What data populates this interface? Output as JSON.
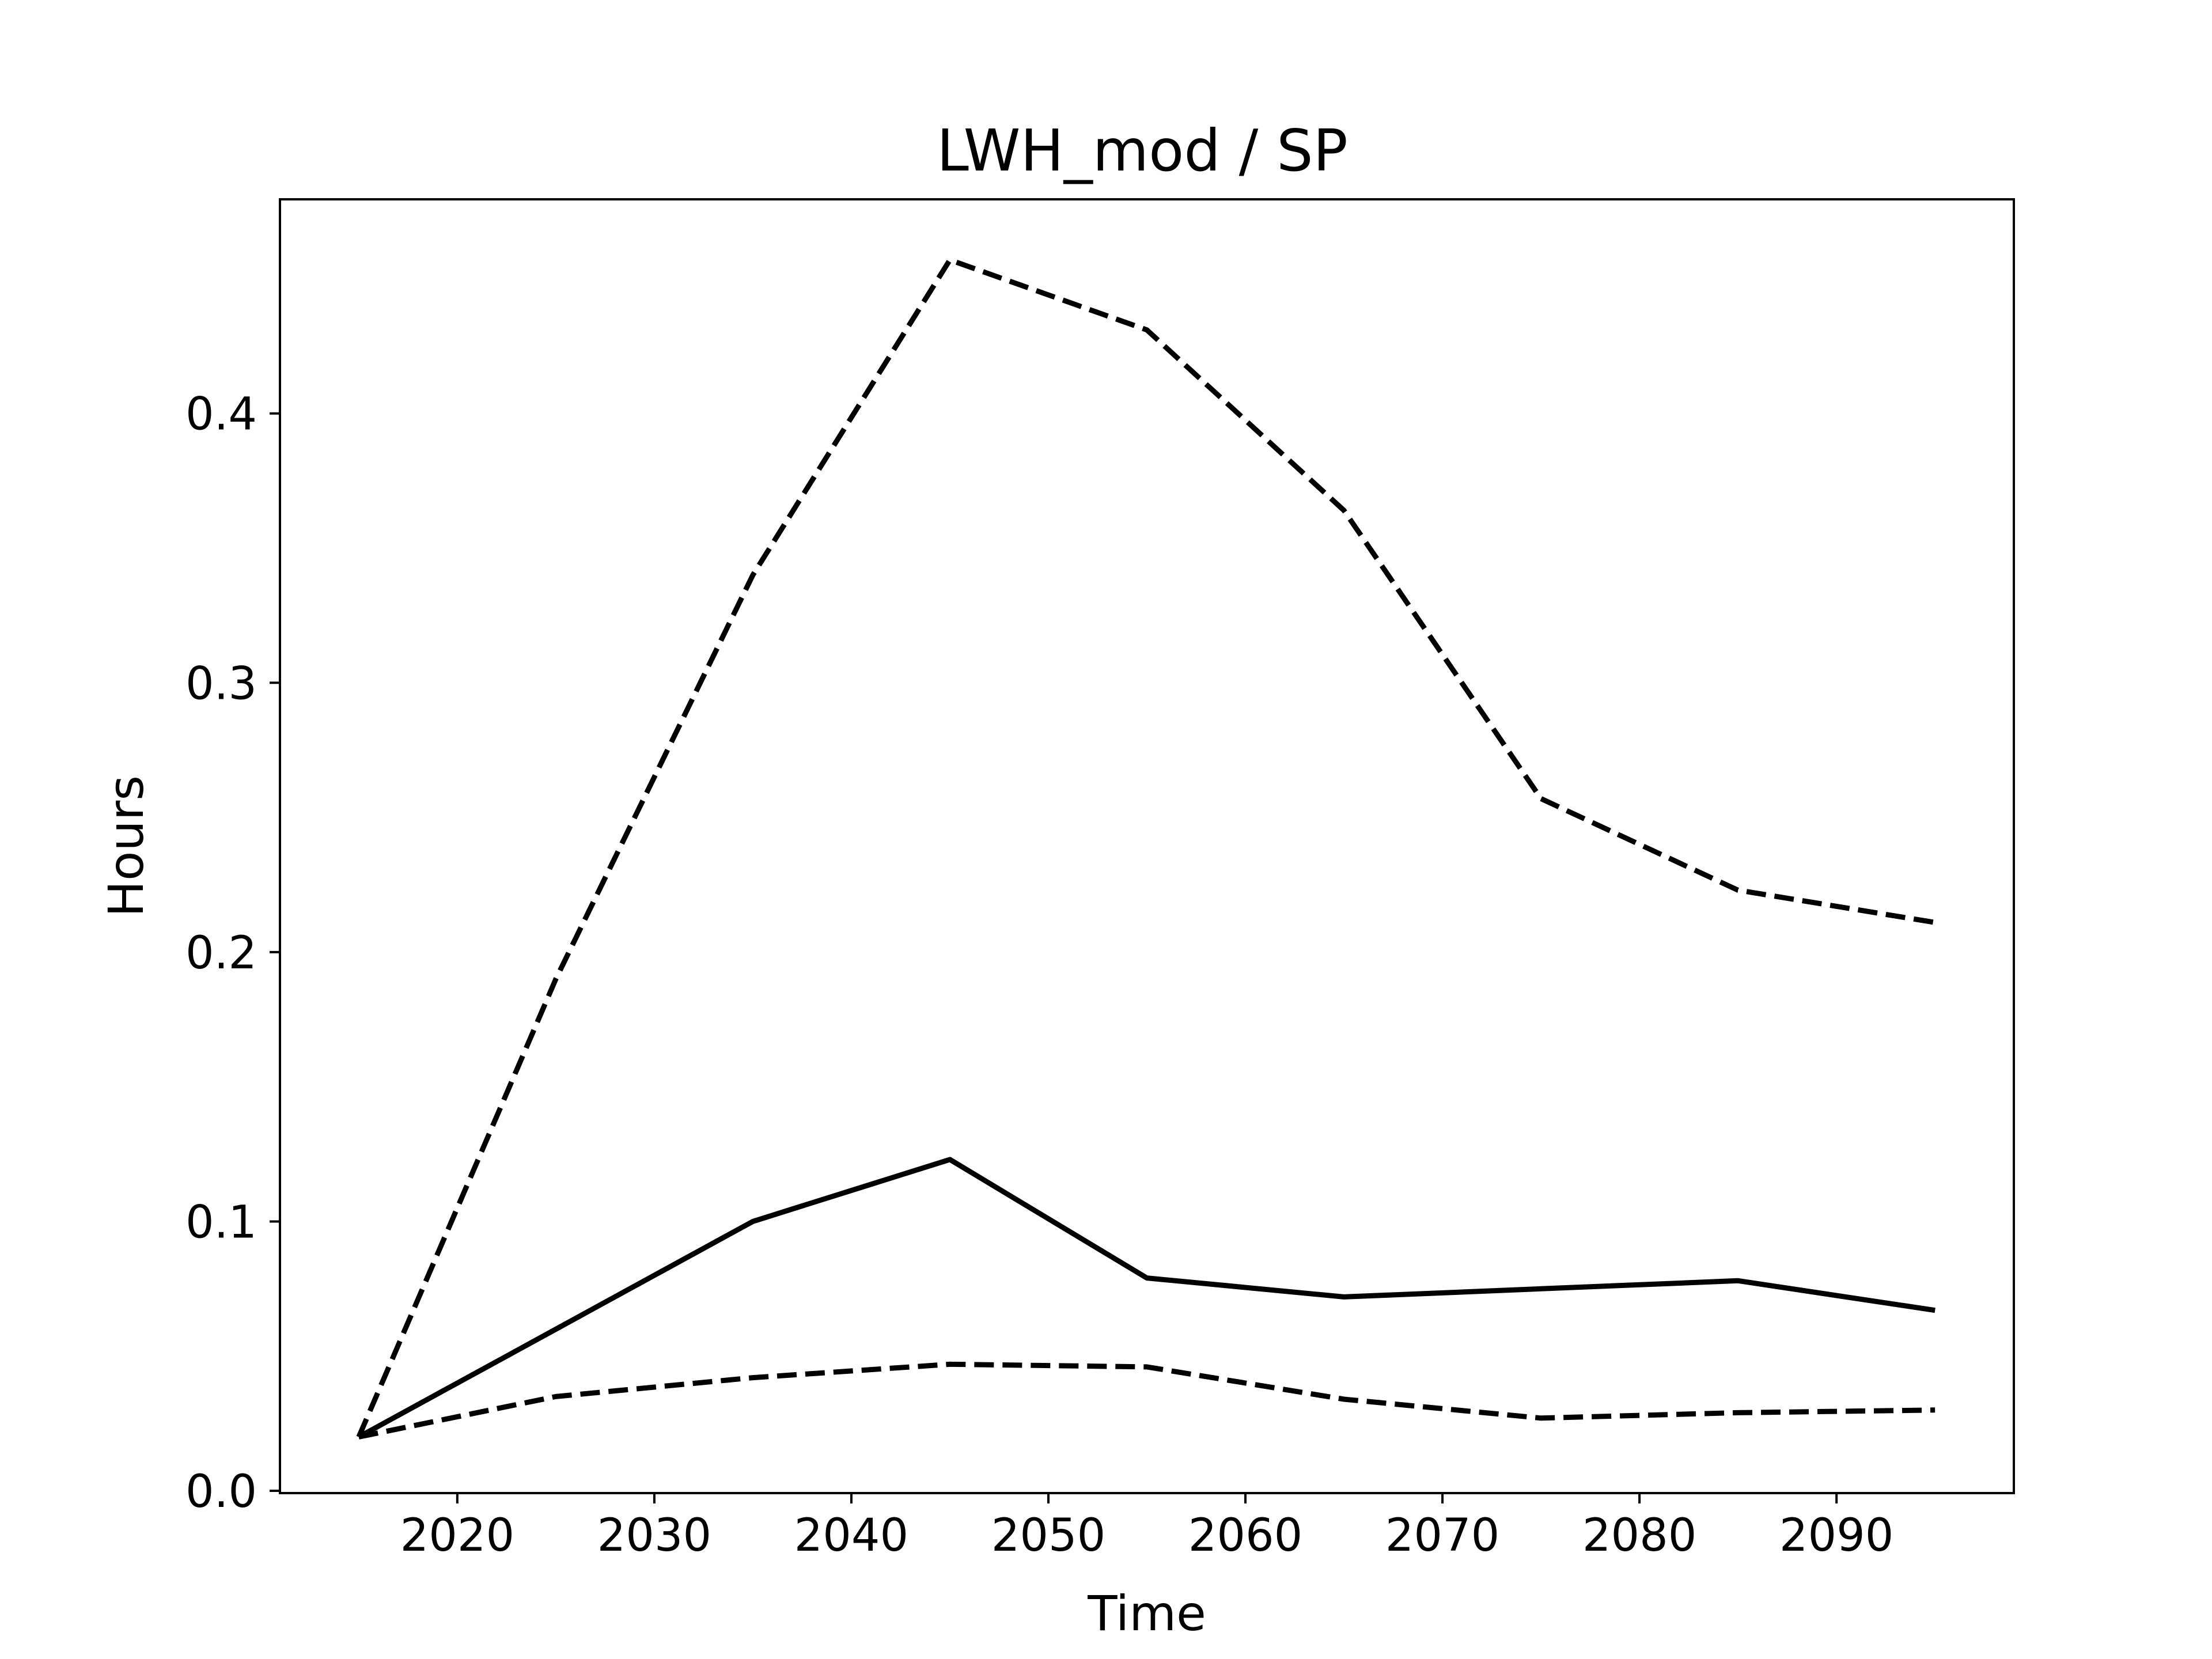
{
  "chart_data": {
    "type": "line",
    "title": "LWH_mod / SP",
    "xlabel": "Time",
    "ylabel": "Hours",
    "xlim": [
      2011,
      2099
    ],
    "ylim": [
      -0.00085,
      0.4795
    ],
    "x_ticks": [
      2020,
      2030,
      2040,
      2050,
      2060,
      2070,
      2080,
      2090
    ],
    "y_ticks": [
      0.0,
      0.1,
      0.2,
      0.3,
      0.4
    ],
    "x_tick_labels": [
      "2020",
      "2030",
      "2040",
      "2050",
      "2060",
      "2070",
      "2080",
      "2090"
    ],
    "y_tick_labels": [
      "0.0",
      "0.1",
      "0.2",
      "0.3",
      "0.4"
    ],
    "grid": false,
    "legend": "none",
    "x": [
      2015,
      2025,
      2035,
      2045,
      2055,
      2065,
      2075,
      2085,
      2095
    ],
    "series": [
      {
        "style": "solid",
        "color": "#000000",
        "values": [
          0.02,
          0.06,
          0.1,
          0.123,
          0.079,
          0.072,
          0.075,
          0.078,
          0.067
        ]
      },
      {
        "style": "dashed",
        "color": "#000000",
        "values": [
          0.02,
          0.19,
          0.34,
          0.457,
          0.431,
          0.364,
          0.257,
          0.223,
          0.211
        ]
      },
      {
        "style": "dashed",
        "color": "#000000",
        "values": [
          0.02,
          0.035,
          0.042,
          0.047,
          0.046,
          0.034,
          0.027,
          0.029,
          0.03
        ]
      }
    ]
  }
}
